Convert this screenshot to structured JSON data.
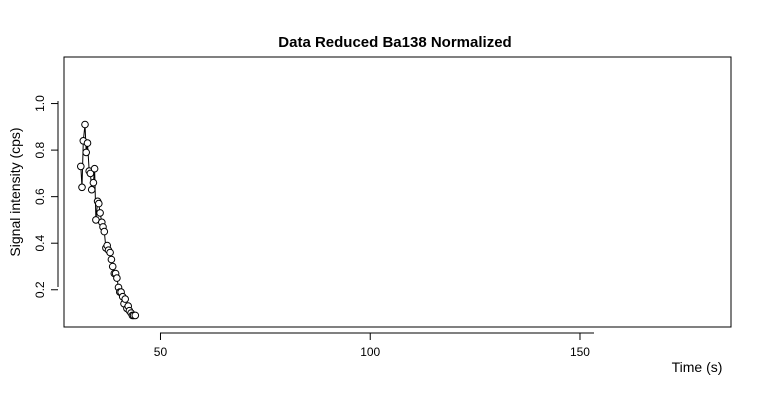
{
  "chart_data": {
    "type": "scatter",
    "title": "Data Reduced Ba138 Normalized",
    "xlabel": "Time (s)",
    "ylabel": "Signal intensity (cps)",
    "xlim": [
      27,
      186
    ],
    "ylim": [
      0.04,
      1.2
    ],
    "x_ticks": [
      50,
      100,
      150
    ],
    "y_ticks": [
      0.2,
      0.4,
      0.6,
      0.8,
      1.0
    ],
    "x_tick_labels": [
      "50",
      "100",
      "150"
    ],
    "y_tick_labels": [
      "0.2",
      "0.4",
      "0.6",
      "0.8",
      "1.0"
    ],
    "grid": false,
    "legend": "none",
    "point_style": "open circles joined by a thin line",
    "colors": {
      "marker": "#000000",
      "line": "#000000",
      "background": "#ffffff"
    },
    "series": [
      {
        "x": [
          31.0,
          31.3,
          31.6,
          32.0,
          32.3,
          32.6,
          33.0,
          33.3,
          33.6,
          34.0,
          34.3,
          34.6,
          35.0,
          35.3,
          35.6,
          36.0,
          36.3,
          36.6,
          37.0,
          37.3,
          37.6,
          38.0,
          38.3,
          38.6,
          39.0,
          39.3,
          39.6,
          40.0,
          40.3,
          40.6,
          41.0,
          41.3,
          41.6,
          42.0,
          42.3,
          42.6,
          43.0,
          43.3,
          43.6,
          44.0
        ],
        "y": [
          0.73,
          0.64,
          0.84,
          0.91,
          0.79,
          0.83,
          0.71,
          0.7,
          0.63,
          0.66,
          0.72,
          0.5,
          0.58,
          0.57,
          0.53,
          0.49,
          0.47,
          0.45,
          0.38,
          0.39,
          0.37,
          0.36,
          0.33,
          0.3,
          0.27,
          0.27,
          0.25,
          0.21,
          0.19,
          0.19,
          0.17,
          0.14,
          0.16,
          0.12,
          0.13,
          0.11,
          0.1,
          0.09,
          0.09,
          0.09
        ]
      }
    ]
  }
}
